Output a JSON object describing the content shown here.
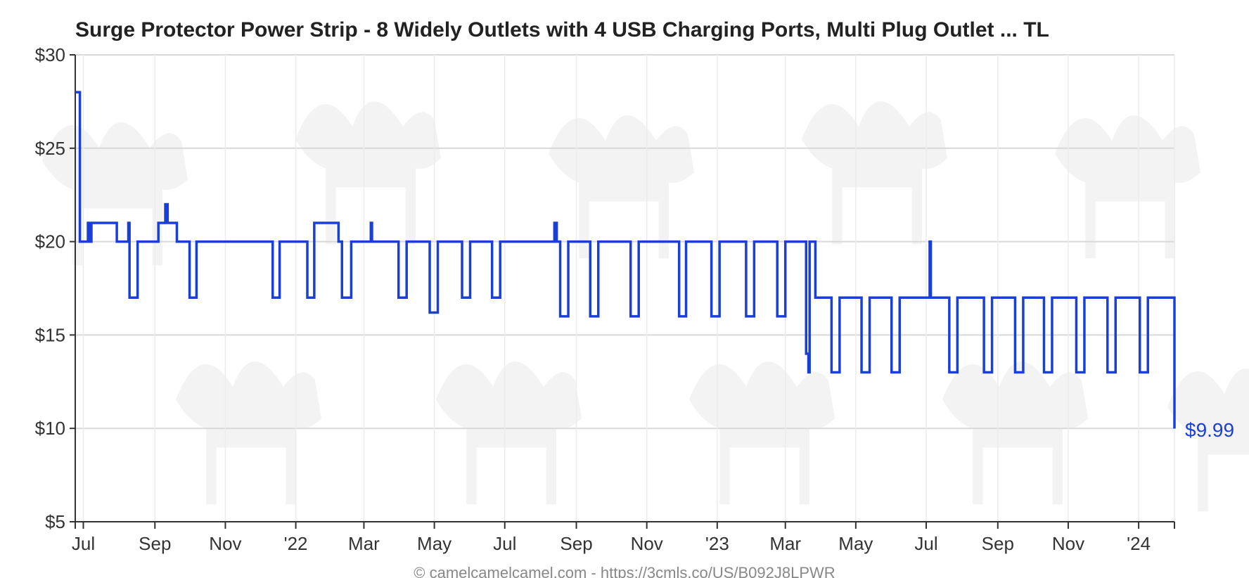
{
  "chart_data": {
    "type": "line",
    "title": "Surge Protector Power Strip - 8 Widely Outlets with 4 USB Charging Ports, Multi Plug Outlet ... TL",
    "xlabel": "",
    "ylabel": "",
    "ylim": [
      5,
      30
    ],
    "xlim": [
      "2021-06-24",
      "2024-02-01"
    ],
    "y_ticks": [
      5,
      10,
      15,
      20,
      25,
      30
    ],
    "y_tick_labels": [
      "$5",
      "$10",
      "$15",
      "$20",
      "$25",
      "$30"
    ],
    "x_ticks": [
      {
        "date": "2021-07-01",
        "label": "Jul"
      },
      {
        "date": "2021-09-01",
        "label": "Sep"
      },
      {
        "date": "2021-11-01",
        "label": "Nov"
      },
      {
        "date": "2022-01-01",
        "label": "'22"
      },
      {
        "date": "2022-03-01",
        "label": "Mar"
      },
      {
        "date": "2022-05-01",
        "label": "May"
      },
      {
        "date": "2022-07-01",
        "label": "Jul"
      },
      {
        "date": "2022-09-01",
        "label": "Sep"
      },
      {
        "date": "2022-11-01",
        "label": "Nov"
      },
      {
        "date": "2023-01-01",
        "label": "'23"
      },
      {
        "date": "2023-03-01",
        "label": "Mar"
      },
      {
        "date": "2023-05-01",
        "label": "May"
      },
      {
        "date": "2023-07-01",
        "label": "Jul"
      },
      {
        "date": "2023-09-01",
        "label": "Sep"
      },
      {
        "date": "2023-11-01",
        "label": "Nov"
      },
      {
        "date": "2024-01-01",
        "label": "'24"
      }
    ],
    "grid": true,
    "series": [
      {
        "color": "#1a3fd6",
        "step": true,
        "points": [
          [
            "2021-06-24",
            28.0
          ],
          [
            "2021-06-28",
            20.0
          ],
          [
            "2021-07-05",
            21.0
          ],
          [
            "2021-07-06",
            20.0
          ],
          [
            "2021-07-08",
            21.0
          ],
          [
            "2021-07-30",
            20.0
          ],
          [
            "2021-08-09",
            21.0
          ],
          [
            "2021-08-10",
            17.0
          ],
          [
            "2021-08-17",
            20.0
          ],
          [
            "2021-09-04",
            21.0
          ],
          [
            "2021-09-10",
            22.0
          ],
          [
            "2021-09-12",
            21.0
          ],
          [
            "2021-09-20",
            20.0
          ],
          [
            "2021-10-01",
            17.0
          ],
          [
            "2021-10-07",
            20.0
          ],
          [
            "2021-12-12",
            17.0
          ],
          [
            "2021-12-18",
            20.0
          ],
          [
            "2022-01-11",
            17.0
          ],
          [
            "2022-01-17",
            21.0
          ],
          [
            "2022-02-07",
            20.0
          ],
          [
            "2022-02-10",
            17.0
          ],
          [
            "2022-02-18",
            20.0
          ],
          [
            "2022-03-07",
            21.0
          ],
          [
            "2022-03-08",
            20.0
          ],
          [
            "2022-03-31",
            17.0
          ],
          [
            "2022-04-07",
            20.0
          ],
          [
            "2022-04-27",
            16.2
          ],
          [
            "2022-05-04",
            20.0
          ],
          [
            "2022-05-25",
            17.0
          ],
          [
            "2022-06-01",
            20.0
          ],
          [
            "2022-06-20",
            17.0
          ],
          [
            "2022-06-27",
            20.0
          ],
          [
            "2022-08-13",
            21.0
          ],
          [
            "2022-08-15",
            20.0
          ],
          [
            "2022-08-18",
            16.0
          ],
          [
            "2022-08-25",
            20.0
          ],
          [
            "2022-09-13",
            16.0
          ],
          [
            "2022-09-20",
            20.0
          ],
          [
            "2022-10-18",
            16.0
          ],
          [
            "2022-10-25",
            20.0
          ],
          [
            "2022-11-29",
            16.0
          ],
          [
            "2022-12-05",
            20.0
          ],
          [
            "2022-12-27",
            16.0
          ],
          [
            "2023-01-03",
            20.0
          ],
          [
            "2023-01-26",
            16.0
          ],
          [
            "2023-02-02",
            20.0
          ],
          [
            "2023-02-22",
            16.0
          ],
          [
            "2023-03-01",
            20.0
          ],
          [
            "2023-03-19",
            14.0
          ],
          [
            "2023-03-21",
            13.0
          ],
          [
            "2023-03-22",
            20.0
          ],
          [
            "2023-03-27",
            17.0
          ],
          [
            "2023-04-10",
            13.0
          ],
          [
            "2023-04-17",
            17.0
          ],
          [
            "2023-05-06",
            13.0
          ],
          [
            "2023-05-13",
            17.0
          ],
          [
            "2023-06-01",
            13.0
          ],
          [
            "2023-06-08",
            17.0
          ],
          [
            "2023-07-04",
            20.0
          ],
          [
            "2023-07-05",
            17.0
          ],
          [
            "2023-07-21",
            13.0
          ],
          [
            "2023-07-28",
            17.0
          ],
          [
            "2023-08-20",
            13.0
          ],
          [
            "2023-08-27",
            17.0
          ],
          [
            "2023-09-16",
            13.0
          ],
          [
            "2023-09-23",
            17.0
          ],
          [
            "2023-10-11",
            13.0
          ],
          [
            "2023-10-18",
            17.0
          ],
          [
            "2023-11-08",
            13.0
          ],
          [
            "2023-11-15",
            17.0
          ],
          [
            "2023-12-05",
            13.0
          ],
          [
            "2023-12-12",
            17.0
          ],
          [
            "2024-01-02",
            13.0
          ],
          [
            "2024-01-09",
            17.0
          ],
          [
            "2024-02-01",
            9.99
          ]
        ]
      }
    ],
    "last_price_label": "$9.99",
    "footer": "© camelcamelcamel.com - https://3cmls.co/US/B092J8LPWR"
  },
  "colors": {
    "line": "#1a3fd6",
    "grid": "#d9d9d9",
    "axis": "#333333",
    "label_accent": "#1a3fd6"
  }
}
